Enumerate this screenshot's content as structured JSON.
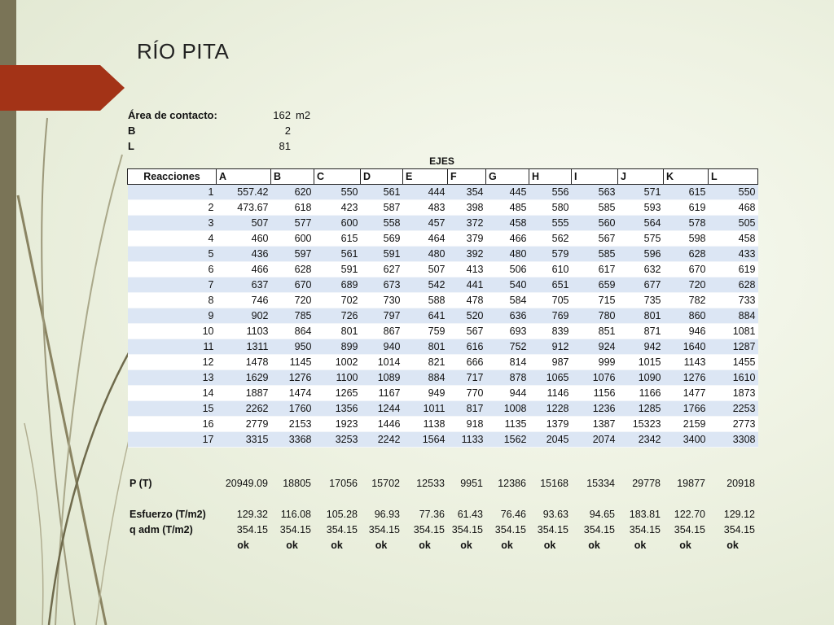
{
  "slide": {
    "title": "RÍO PITA"
  },
  "info": [
    {
      "label": "Área de contacto:",
      "value": "162",
      "unit": "m2"
    },
    {
      "label": "B",
      "value": "2",
      "unit": ""
    },
    {
      "label": "L",
      "value": "81",
      "unit": ""
    }
  ],
  "table": {
    "group_header": "EJES",
    "columns": [
      "Reacciones",
      "A",
      "B",
      "C",
      "D",
      "E",
      "F",
      "G",
      "H",
      "I",
      "J",
      "K",
      "L"
    ],
    "rows": [
      [
        "1",
        "557.42",
        "620",
        "550",
        "561",
        "444",
        "354",
        "445",
        "556",
        "563",
        "571",
        "615",
        "550"
      ],
      [
        "2",
        "473.67",
        "618",
        "423",
        "587",
        "483",
        "398",
        "485",
        "580",
        "585",
        "593",
        "619",
        "468"
      ],
      [
        "3",
        "507",
        "577",
        "600",
        "558",
        "457",
        "372",
        "458",
        "555",
        "560",
        "564",
        "578",
        "505"
      ],
      [
        "4",
        "460",
        "600",
        "615",
        "569",
        "464",
        "379",
        "466",
        "562",
        "567",
        "575",
        "598",
        "458"
      ],
      [
        "5",
        "436",
        "597",
        "561",
        "591",
        "480",
        "392",
        "480",
        "579",
        "585",
        "596",
        "628",
        "433"
      ],
      [
        "6",
        "466",
        "628",
        "591",
        "627",
        "507",
        "413",
        "506",
        "610",
        "617",
        "632",
        "670",
        "619"
      ],
      [
        "7",
        "637",
        "670",
        "689",
        "673",
        "542",
        "441",
        "540",
        "651",
        "659",
        "677",
        "720",
        "628"
      ],
      [
        "8",
        "746",
        "720",
        "702",
        "730",
        "588",
        "478",
        "584",
        "705",
        "715",
        "735",
        "782",
        "733"
      ],
      [
        "9",
        "902",
        "785",
        "726",
        "797",
        "641",
        "520",
        "636",
        "769",
        "780",
        "801",
        "860",
        "884"
      ],
      [
        "10",
        "1103",
        "864",
        "801",
        "867",
        "759",
        "567",
        "693",
        "839",
        "851",
        "871",
        "946",
        "1081"
      ],
      [
        "11",
        "1311",
        "950",
        "899",
        "940",
        "801",
        "616",
        "752",
        "912",
        "924",
        "942",
        "1640",
        "1287"
      ],
      [
        "12",
        "1478",
        "1145",
        "1002",
        "1014",
        "821",
        "666",
        "814",
        "987",
        "999",
        "1015",
        "1143",
        "1455"
      ],
      [
        "13",
        "1629",
        "1276",
        "1100",
        "1089",
        "884",
        "717",
        "878",
        "1065",
        "1076",
        "1090",
        "1276",
        "1610"
      ],
      [
        "14",
        "1887",
        "1474",
        "1265",
        "1167",
        "949",
        "770",
        "944",
        "1146",
        "1156",
        "1166",
        "1477",
        "1873"
      ],
      [
        "15",
        "2262",
        "1760",
        "1356",
        "1244",
        "1011",
        "817",
        "1008",
        "1228",
        "1236",
        "1285",
        "1766",
        "2253"
      ],
      [
        "16",
        "2779",
        "2153",
        "1923",
        "1446",
        "1138",
        "918",
        "1135",
        "1379",
        "1387",
        "15323",
        "2159",
        "2773"
      ],
      [
        "17",
        "3315",
        "3368",
        "3253",
        "2242",
        "1564",
        "1133",
        "1562",
        "2045",
        "2074",
        "2342",
        "3400",
        "3308"
      ]
    ]
  },
  "summary": {
    "p": {
      "label": "P (T)",
      "values": [
        "20949.09",
        "18805",
        "17056",
        "15702",
        "12533",
        "9951",
        "12386",
        "15168",
        "15334",
        "29778",
        "19877",
        "20918"
      ]
    },
    "esfuerzo": {
      "label": "Esfuerzo (T/m2)",
      "values": [
        "129.32",
        "116.08",
        "105.28",
        "96.93",
        "77.36",
        "61.43",
        "76.46",
        "93.63",
        "94.65",
        "183.81",
        "122.70",
        "129.12"
      ]
    },
    "qadm": {
      "label": "q adm (T/m2)",
      "values": [
        "354.15",
        "354.15",
        "354.15",
        "354.15",
        "354.15",
        "354.15",
        "354.15",
        "354.15",
        "354.15",
        "354.15",
        "354.15",
        "354.15"
      ]
    },
    "check": [
      "ok",
      "ok",
      "ok",
      "ok",
      "ok",
      "ok",
      "ok",
      "ok",
      "ok",
      "ok",
      "ok",
      "ok"
    ]
  },
  "theme": {
    "bar_color": "#7a7457",
    "tab_color": "#a33317",
    "row_band_color": "#dce6f4"
  }
}
